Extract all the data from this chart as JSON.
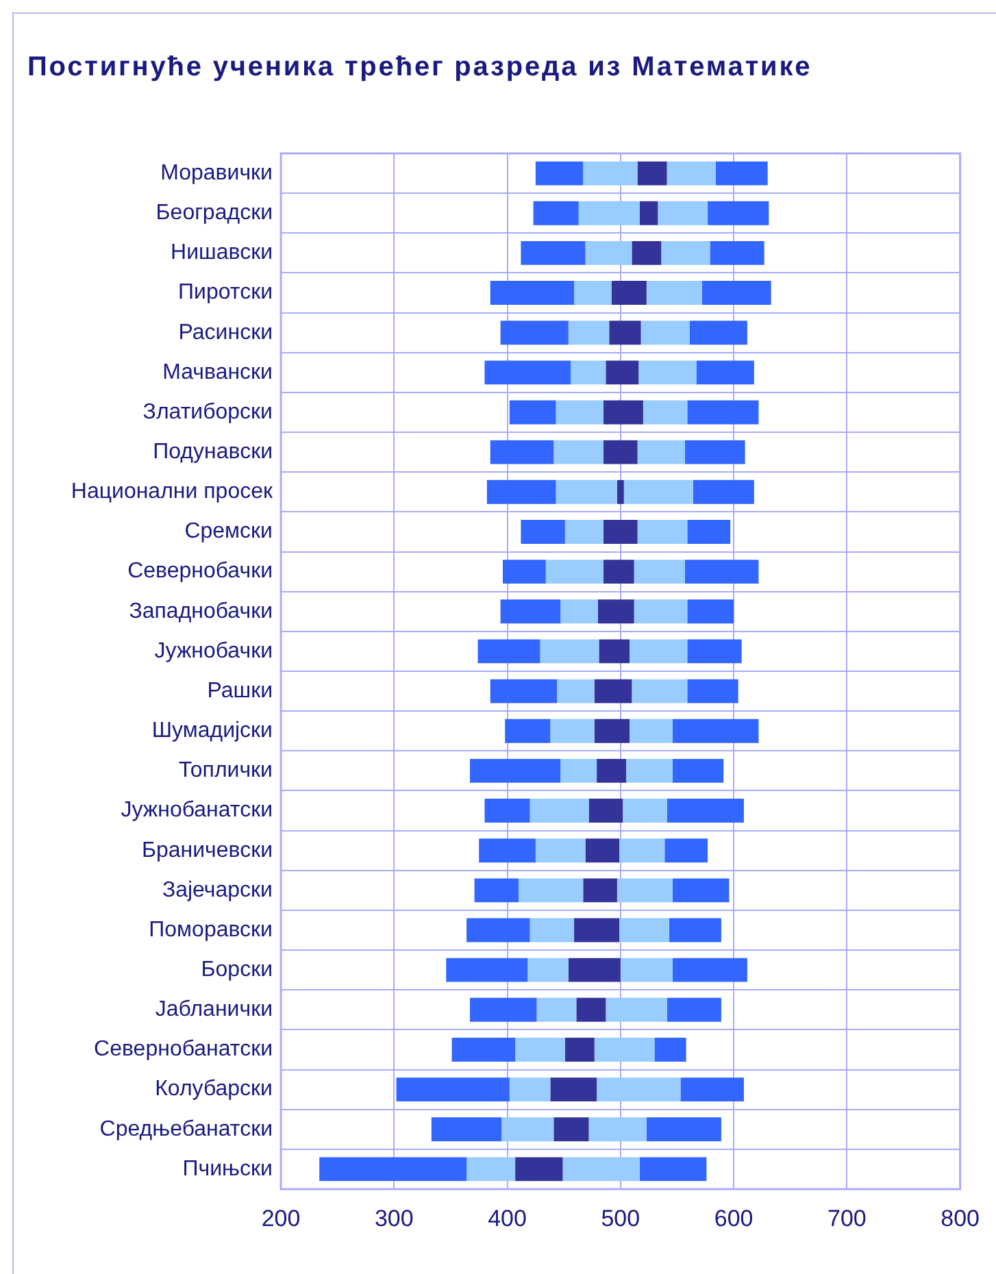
{
  "chart_data": {
    "type": "bar",
    "orientation": "horizontal",
    "title": "Постигнуће ученика трећег разреда из Математике",
    "categories": [
      "Моравички",
      "Београдски",
      "Нишавски",
      "Пиротски",
      "Расински",
      "Мачвански",
      "Златиборски",
      "Подунавски",
      "Национални просек",
      "Сремски",
      "Севернобачки",
      "Западнобачки",
      "Јужнобачки",
      "Рашки",
      "Шумадијски",
      "Топлички",
      "Јужнобанатски",
      "Браничевски",
      "Зајечарски",
      "Поморавски",
      "Борски",
      "Јабланички",
      "Севернобанатски",
      "Колубарски",
      "Средњебанатски",
      "Пчињски"
    ],
    "series": [
      {
        "color": "#3366ff",
        "base": [
          425,
          423,
          412,
          385,
          394,
          380,
          402,
          385,
          382,
          412,
          396,
          394,
          374,
          385,
          398,
          367,
          380,
          375,
          371,
          364,
          346,
          367,
          351,
          302,
          333,
          234
        ],
        "values": [
          42,
          40,
          57,
          74,
          60,
          76,
          41,
          56,
          61,
          39,
          38,
          53,
          55,
          59,
          40,
          80,
          40,
          50,
          39,
          56,
          72,
          59,
          56,
          100,
          62,
          130
        ]
      },
      {
        "color": "#99ccff",
        "base": [
          467,
          463,
          469,
          459,
          454,
          456,
          443,
          441,
          443,
          451,
          434,
          447,
          429,
          444,
          438,
          447,
          420,
          425,
          410,
          420,
          418,
          426,
          407,
          402,
          395,
          364
        ],
        "values": [
          48,
          54,
          41,
          33,
          36,
          31,
          42,
          44,
          54,
          34,
          51,
          33,
          52,
          33,
          39,
          32,
          52,
          44,
          57,
          39,
          36,
          35,
          44,
          36,
          46,
          43
        ]
      },
      {
        "color": "#333399",
        "base": [
          515,
          517,
          510,
          492,
          490,
          487,
          485,
          485,
          497,
          485,
          485,
          480,
          481,
          477,
          477,
          479,
          472,
          469,
          467,
          459,
          454,
          461,
          451,
          438,
          441,
          407
        ],
        "values": [
          26,
          16,
          26,
          31,
          28,
          29,
          35,
          30,
          6,
          30,
          27,
          32,
          27,
          33,
          31,
          26,
          30,
          30,
          30,
          40,
          46,
          26,
          26,
          41,
          31,
          42
        ]
      },
      {
        "color": "#99ccff",
        "base": [
          541,
          533,
          536,
          523,
          518,
          516,
          520,
          515,
          503,
          515,
          512,
          512,
          508,
          510,
          508,
          505,
          502,
          499,
          497,
          499,
          500,
          487,
          477,
          479,
          472,
          449
        ],
        "values": [
          43,
          44,
          43,
          49,
          43,
          51,
          39,
          42,
          61,
          44,
          45,
          47,
          51,
          49,
          38,
          41,
          39,
          40,
          49,
          44,
          46,
          54,
          53,
          74,
          51,
          68
        ]
      },
      {
        "color": "#3366ff",
        "base": [
          584,
          577,
          579,
          572,
          561,
          567,
          559,
          557,
          564,
          559,
          557,
          559,
          559,
          559,
          546,
          546,
          541,
          539,
          546,
          543,
          546,
          541,
          530,
          553,
          523,
          517
        ],
        "values": [
          46,
          54,
          48,
          61,
          51,
          51,
          63,
          53,
          54,
          38,
          65,
          41,
          48,
          45,
          76,
          45,
          68,
          38,
          50,
          46,
          66,
          48,
          28,
          56,
          66,
          59
        ]
      }
    ],
    "xlim": [
      200,
      800
    ],
    "xticks": [
      200,
      300,
      400,
      500,
      600,
      700,
      800
    ],
    "grid": true,
    "legend": false
  }
}
